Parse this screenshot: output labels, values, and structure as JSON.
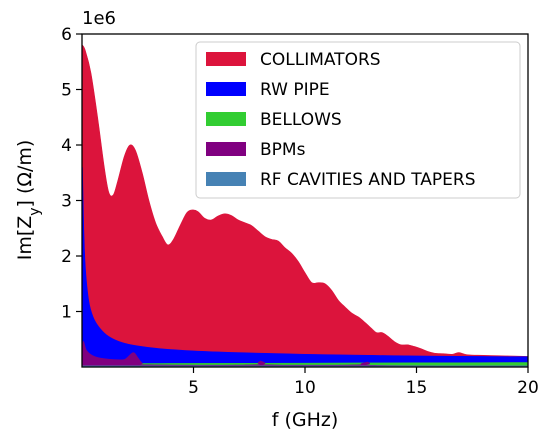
{
  "chart_data": {
    "type": "area",
    "xlabel": "f (GHz)",
    "ylabel": "Im[Z_y] (Ω/m)",
    "ylabel_parts": {
      "pre": "Im[Z",
      "sub": "y",
      "post": "] (Ω/m)"
    },
    "y_multiplier": "1e6",
    "xlim": [
      0,
      20
    ],
    "ylim": [
      0,
      6000000
    ],
    "xticks": [
      {
        "value": 5,
        "label": "5"
      },
      {
        "value": 10,
        "label": "10"
      },
      {
        "value": 15,
        "label": "15"
      },
      {
        "value": 20,
        "label": "20"
      }
    ],
    "yticks": [
      {
        "value": 1000000,
        "label": "1"
      },
      {
        "value": 2000000,
        "label": "2"
      },
      {
        "value": 3000000,
        "label": "3"
      },
      {
        "value": 4000000,
        "label": "4"
      },
      {
        "value": 5000000,
        "label": "5"
      },
      {
        "value": 6000000,
        "label": "6"
      }
    ],
    "legend_position": "upper right",
    "series": [
      {
        "name": "COLLIMATORS",
        "color": "#dc143c",
        "points": [
          [
            0.02,
            5800000
          ],
          [
            0.15,
            5700000
          ],
          [
            0.4,
            5300000
          ],
          [
            0.7,
            4500000
          ],
          [
            1.0,
            3600000
          ],
          [
            1.2,
            3150000
          ],
          [
            1.4,
            3100000
          ],
          [
            1.6,
            3350000
          ],
          [
            1.9,
            3800000
          ],
          [
            2.15,
            4000000
          ],
          [
            2.4,
            3900000
          ],
          [
            2.7,
            3500000
          ],
          [
            3.0,
            3000000
          ],
          [
            3.3,
            2600000
          ],
          [
            3.6,
            2350000
          ],
          [
            3.85,
            2200000
          ],
          [
            4.1,
            2300000
          ],
          [
            4.4,
            2550000
          ],
          [
            4.7,
            2780000
          ],
          [
            4.95,
            2830000
          ],
          [
            5.2,
            2800000
          ],
          [
            5.5,
            2680000
          ],
          [
            5.8,
            2650000
          ],
          [
            6.1,
            2720000
          ],
          [
            6.4,
            2760000
          ],
          [
            6.7,
            2730000
          ],
          [
            7.0,
            2650000
          ],
          [
            7.3,
            2600000
          ],
          [
            7.6,
            2550000
          ],
          [
            7.9,
            2450000
          ],
          [
            8.2,
            2350000
          ],
          [
            8.5,
            2300000
          ],
          [
            8.8,
            2270000
          ],
          [
            9.1,
            2150000
          ],
          [
            9.4,
            2050000
          ],
          [
            9.7,
            1900000
          ],
          [
            10.0,
            1700000
          ],
          [
            10.3,
            1520000
          ],
          [
            10.6,
            1520000
          ],
          [
            10.9,
            1500000
          ],
          [
            11.2,
            1380000
          ],
          [
            11.5,
            1200000
          ],
          [
            11.8,
            1080000
          ],
          [
            12.1,
            970000
          ],
          [
            12.4,
            900000
          ],
          [
            12.7,
            800000
          ],
          [
            13.0,
            690000
          ],
          [
            13.2,
            620000
          ],
          [
            13.45,
            620000
          ],
          [
            13.7,
            560000
          ],
          [
            14.0,
            460000
          ],
          [
            14.3,
            400000
          ],
          [
            14.6,
            400000
          ],
          [
            14.9,
            370000
          ],
          [
            15.2,
            330000
          ],
          [
            15.5,
            280000
          ],
          [
            15.8,
            250000
          ],
          [
            16.2,
            240000
          ],
          [
            16.6,
            230000
          ],
          [
            16.9,
            260000
          ],
          [
            17.3,
            220000
          ],
          [
            18.0,
            210000
          ],
          [
            19.0,
            200000
          ],
          [
            20.0,
            190000
          ]
        ]
      },
      {
        "name": "RW PIPE",
        "color": "#0000ff",
        "points": [
          [
            0.02,
            3600000
          ],
          [
            0.08,
            2500000
          ],
          [
            0.15,
            1800000
          ],
          [
            0.3,
            1200000
          ],
          [
            0.5,
            900000
          ],
          [
            0.8,
            700000
          ],
          [
            1.2,
            550000
          ],
          [
            1.8,
            440000
          ],
          [
            2.5,
            380000
          ],
          [
            3.5,
            330000
          ],
          [
            5.0,
            290000
          ],
          [
            7.0,
            260000
          ],
          [
            10.0,
            230000
          ],
          [
            13.0,
            210000
          ],
          [
            16.0,
            195000
          ],
          [
            20.0,
            185000
          ]
        ]
      },
      {
        "name": "BELLOWS",
        "color": "#32cd32",
        "points": [
          [
            0.0,
            60000
          ],
          [
            5.0,
            65000
          ],
          [
            10.0,
            70000
          ],
          [
            15.0,
            75000
          ],
          [
            20.0,
            80000
          ]
        ]
      },
      {
        "name": "BPMs",
        "color": "#800080",
        "points": [
          [
            0.0,
            0
          ],
          [
            0.05,
            450000
          ],
          [
            0.2,
            300000
          ],
          [
            0.5,
            200000
          ],
          [
            1.0,
            150000
          ],
          [
            1.8,
            130000
          ],
          [
            2.0,
            160000
          ],
          [
            2.3,
            260000
          ],
          [
            2.5,
            170000
          ],
          [
            2.7,
            70000
          ],
          [
            3.0,
            40000
          ],
          [
            7.8,
            40000
          ],
          [
            8.0,
            110000
          ],
          [
            8.3,
            40000
          ],
          [
            12.5,
            40000
          ],
          [
            12.8,
            90000
          ],
          [
            13.1,
            30000
          ],
          [
            20.0,
            20000
          ]
        ]
      },
      {
        "name": "RF CAVITIES AND TAPERS",
        "color": "#4682b4",
        "points": [
          [
            0.0,
            20000
          ],
          [
            20.0,
            20000
          ]
        ]
      }
    ]
  }
}
